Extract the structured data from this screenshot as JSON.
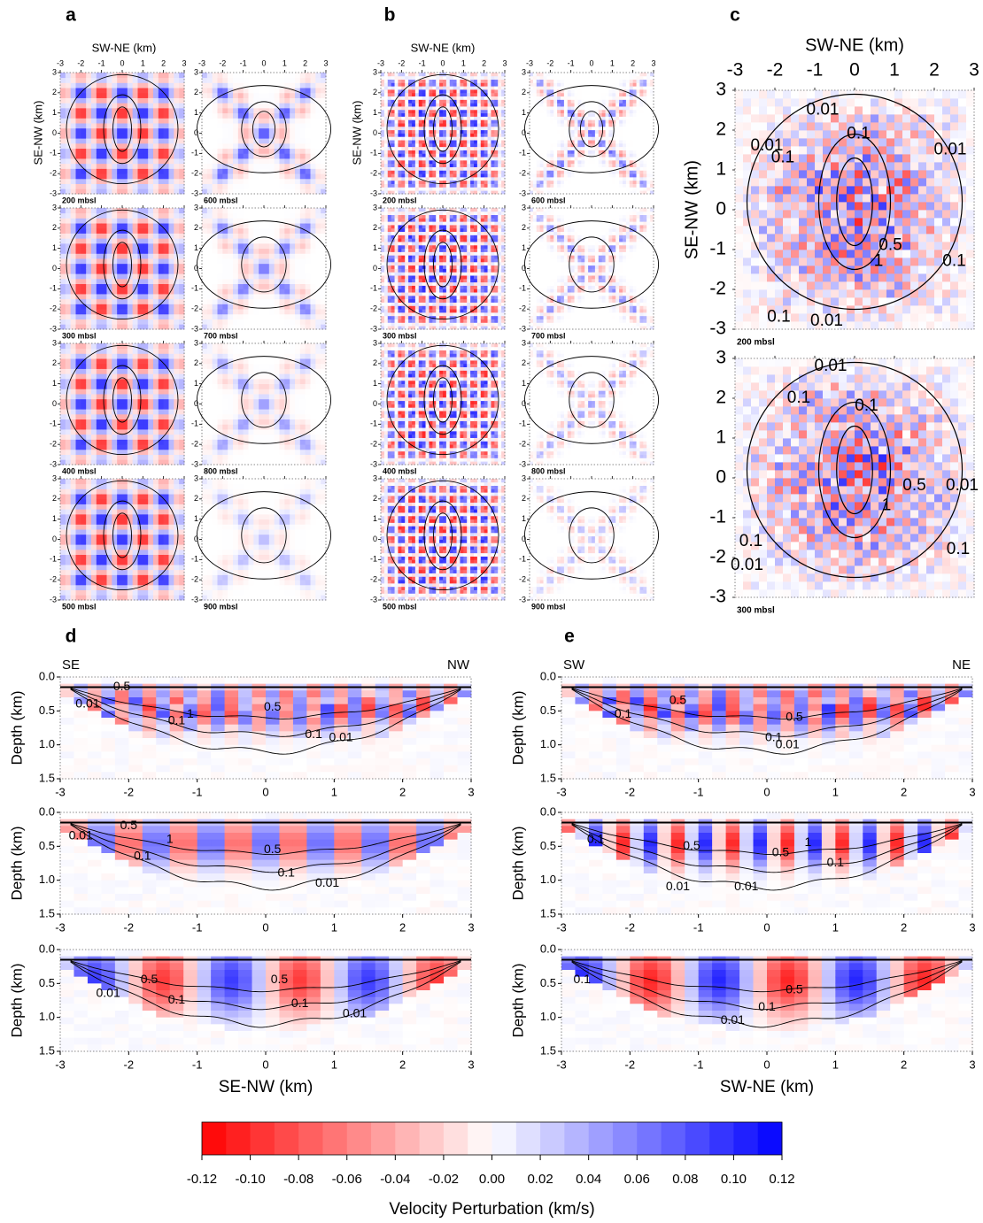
{
  "figure": {
    "panel_letters": [
      "a",
      "b",
      "c",
      "d",
      "e"
    ],
    "map_x_label": "SW-NE (km)",
    "map_y_label": "SE-NW (km)",
    "map_lim": [
      -3,
      3
    ],
    "map_ticks": [
      -3,
      -2,
      -1,
      0,
      1,
      2,
      3
    ],
    "panel_a_depths": [
      "200 mbsl",
      "300 mbsl",
      "400 mbsl",
      "500 mbsl",
      "600 mbsl",
      "700 mbsl",
      "800 mbsl",
      "900 mbsl"
    ],
    "panel_b_depths": [
      "200 mbsl",
      "300 mbsl",
      "400 mbsl",
      "500 mbsl",
      "600 mbsl",
      "700 mbsl",
      "800 mbsl",
      "900 mbsl"
    ],
    "panel_c_depths": [
      "200 mbsl",
      "300 mbsl"
    ],
    "section_y_label": "Depth (km)",
    "section_ylim": [
      0,
      1.5
    ],
    "section_yticks": [
      {
        "value": 0,
        "label": "0.0"
      },
      {
        "value": 0.5,
        "label": "0.5"
      },
      {
        "value": 1,
        "label": "1.0"
      },
      {
        "value": 1.5,
        "label": "1.5"
      }
    ],
    "section_xlim": [
      -3,
      3
    ],
    "section_xticks": [
      -3,
      -2,
      -1,
      0,
      1,
      2,
      3
    ],
    "panel_d": {
      "left_end": "SE",
      "right_end": "NW",
      "x_label": "SE-NW (km)"
    },
    "panel_e": {
      "left_end": "SW",
      "right_end": "NE",
      "x_label": "SW-NE (km)"
    },
    "contour_labels": {
      "c": [
        [
          "0.01",
          "0.1",
          "0.01",
          "0.01",
          "0.1",
          "0.5",
          "1",
          "0.1",
          "0.1",
          "0.01"
        ],
        [
          "0.01",
          "0.1",
          "0.1",
          "0.5",
          "1",
          "0.01",
          "0.1",
          "0.1",
          "0.01"
        ]
      ],
      "d": [
        [
          "0.5",
          "1",
          "0.01",
          "0.1",
          "0.5",
          "0.1",
          "0.01"
        ],
        [
          "0.5",
          "0.01",
          "1",
          "0.1",
          "0.5",
          "0.1",
          "0.01"
        ],
        [
          "0.5",
          "0.01",
          "0.1",
          "0.5",
          "0.1",
          "0.01"
        ]
      ],
      "e": [
        [
          "0.5",
          "0.1",
          "0.5",
          "0.1",
          "0.01"
        ],
        [
          "0.1",
          "0.5",
          "0.5",
          "1",
          "0.1",
          "0.01",
          "0.01"
        ],
        [
          "0.1",
          "0.5",
          "0.1",
          "0.01"
        ]
      ]
    },
    "colorbar": {
      "label": "Velocity Perturbation (km/s)",
      "lim": [
        -0.12,
        0.12
      ],
      "colors": [
        "#ff0000",
        "#ffffff",
        "#0000ff"
      ],
      "ticks": [
        {
          "value": -0.12,
          "label": "-0.12"
        },
        {
          "value": -0.1,
          "label": "-0.10"
        },
        {
          "value": -0.08,
          "label": "-0.08"
        },
        {
          "value": -0.06,
          "label": "-0.06"
        },
        {
          "value": -0.04,
          "label": "-0.04"
        },
        {
          "value": -0.02,
          "label": "-0.02"
        },
        {
          "value": 0,
          "label": "0.00"
        },
        {
          "value": 0.02,
          "label": "0.02"
        },
        {
          "value": 0.04,
          "label": "0.04"
        },
        {
          "value": 0.06,
          "label": "0.06"
        },
        {
          "value": 0.08,
          "label": "0.08"
        },
        {
          "value": 0.1,
          "label": "0.10"
        },
        {
          "value": 0.12,
          "label": "0.12"
        }
      ]
    }
  }
}
